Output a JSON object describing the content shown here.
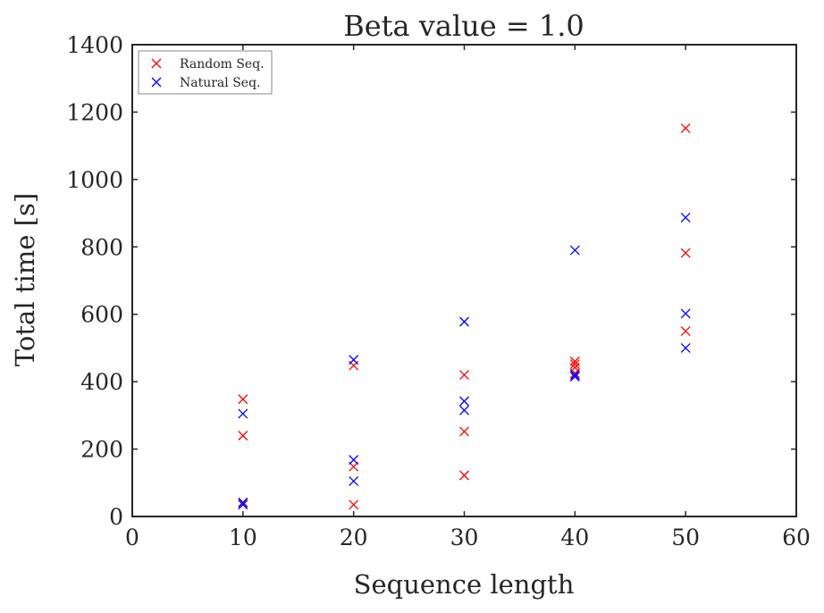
{
  "chart_data": {
    "type": "scatter",
    "title": "Beta value = 1.0",
    "xlabel": "Sequence length",
    "ylabel": "Total time [s]",
    "xlim": [
      0,
      60
    ],
    "ylim": [
      0,
      1400
    ],
    "xticks": [
      0,
      10,
      20,
      30,
      40,
      50,
      60
    ],
    "yticks": [
      0,
      200,
      400,
      600,
      800,
      1000,
      1200,
      1400
    ],
    "grid": false,
    "legend_position": "top-left",
    "marker": "x",
    "series": [
      {
        "name": "Random Seq.",
        "color": "#ff0000",
        "points": [
          [
            10,
            348
          ],
          [
            10,
            240
          ],
          [
            10,
            40
          ],
          [
            20,
            448
          ],
          [
            20,
            148
          ],
          [
            20,
            35
          ],
          [
            30,
            420
          ],
          [
            30,
            252
          ],
          [
            30,
            122
          ],
          [
            40,
            460
          ],
          [
            40,
            452
          ],
          [
            40,
            442
          ],
          [
            40,
            425
          ],
          [
            50,
            1152
          ],
          [
            50,
            782
          ],
          [
            50,
            550
          ]
        ]
      },
      {
        "name": "Natural Seq.",
        "color": "#0000ff",
        "points": [
          [
            10,
            305
          ],
          [
            10,
            42
          ],
          [
            10,
            35
          ],
          [
            20,
            465
          ],
          [
            20,
            168
          ],
          [
            20,
            105
          ],
          [
            30,
            578
          ],
          [
            30,
            342
          ],
          [
            30,
            315
          ],
          [
            40,
            790
          ],
          [
            40,
            420
          ],
          [
            40,
            415
          ],
          [
            50,
            887
          ],
          [
            50,
            602
          ],
          [
            50,
            500
          ]
        ]
      }
    ]
  }
}
